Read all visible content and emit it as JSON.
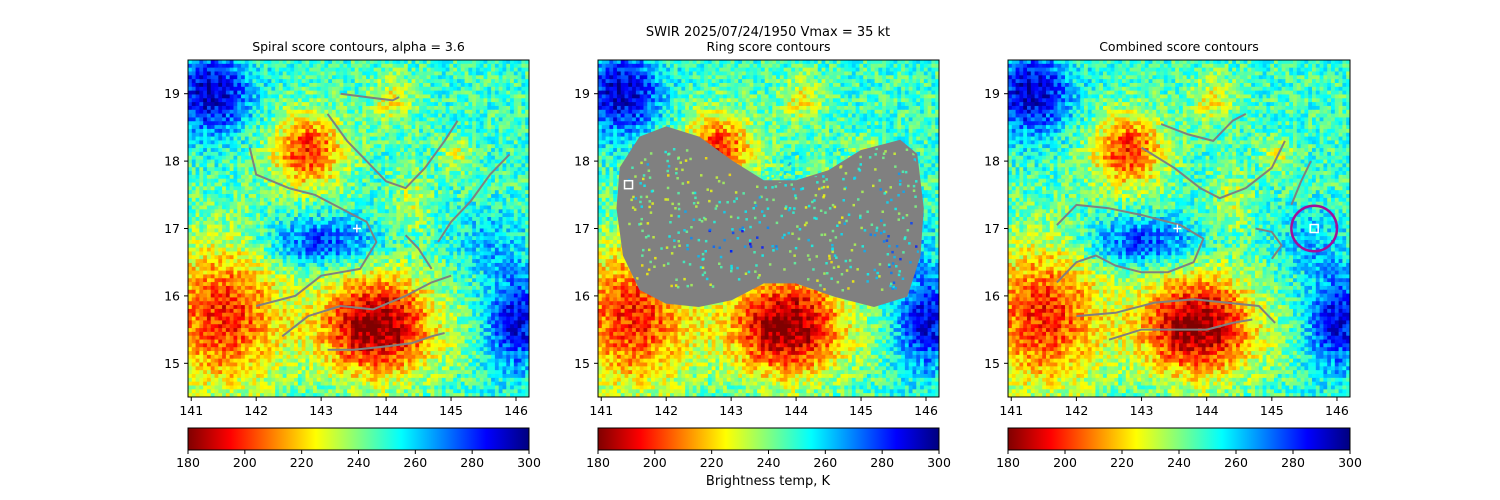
{
  "suptitle": "SWIR  2025/07/24/1950    Vmax = 35 kt",
  "colorbar_label": "Brightness temp, K",
  "colormap_stops": [
    "#800000",
    "#ff0000",
    "#ff8000",
    "#ffff00",
    "#80ff80",
    "#00ffff",
    "#0080ff",
    "#0000ff",
    "#00007f"
  ],
  "contour_color": "#808080",
  "marker_color": "#ffffff",
  "circle_color": "#a0109a",
  "chart_data": [
    {
      "type": "heatmap",
      "title": "Spiral score contours, alpha =  3.6",
      "xlim": [
        140.95,
        146.2
      ],
      "ylim": [
        14.5,
        19.5
      ],
      "xticks": [
        141,
        142,
        143,
        144,
        145,
        146
      ],
      "yticks": [
        15,
        16,
        17,
        18,
        19
      ],
      "colorbar": {
        "min": 180,
        "max": 300,
        "ticks": [
          180,
          200,
          220,
          240,
          260,
          280,
          300
        ]
      },
      "overlay": "spiral",
      "center_marker": {
        "lon": 143.55,
        "lat": 17.0,
        "symbol": "+"
      },
      "contours": [
        [
          [
            143.3,
            19.0
          ],
          [
            143.7,
            18.95
          ],
          [
            144.1,
            18.9
          ],
          [
            144.2,
            18.95
          ]
        ],
        [
          [
            143.1,
            18.7
          ],
          [
            143.4,
            18.3
          ],
          [
            143.7,
            18.0
          ],
          [
            144.0,
            17.7
          ],
          [
            144.3,
            17.6
          ],
          [
            144.6,
            17.9
          ],
          [
            144.9,
            18.3
          ],
          [
            145.1,
            18.6
          ]
        ],
        [
          [
            141.9,
            18.2
          ],
          [
            142.0,
            17.8
          ],
          [
            142.5,
            17.6
          ],
          [
            142.9,
            17.5
          ],
          [
            143.3,
            17.3
          ],
          [
            143.7,
            17.1
          ],
          [
            143.85,
            16.8
          ],
          [
            143.6,
            16.4
          ],
          [
            143.0,
            16.3
          ],
          [
            142.6,
            16.0
          ],
          [
            142.0,
            15.85
          ]
        ],
        [
          [
            142.4,
            15.4
          ],
          [
            142.8,
            15.7
          ],
          [
            143.3,
            15.85
          ],
          [
            143.8,
            15.8
          ],
          [
            144.3,
            16.0
          ],
          [
            144.7,
            16.2
          ],
          [
            145.0,
            16.3
          ]
        ],
        [
          [
            143.1,
            15.2
          ],
          [
            143.5,
            15.2
          ],
          [
            144.0,
            15.25
          ],
          [
            144.4,
            15.3
          ],
          [
            144.7,
            15.4
          ],
          [
            144.9,
            15.45
          ]
        ],
        [
          [
            144.8,
            16.8
          ],
          [
            145.0,
            17.1
          ],
          [
            145.3,
            17.4
          ],
          [
            145.6,
            17.8
          ],
          [
            145.9,
            18.1
          ]
        ],
        [
          [
            144.7,
            16.4
          ],
          [
            144.5,
            16.7
          ],
          [
            144.3,
            16.9
          ]
        ]
      ]
    },
    {
      "type": "heatmap",
      "title": "Ring score contours",
      "xlim": [
        140.95,
        146.2
      ],
      "ylim": [
        14.5,
        19.5
      ],
      "xticks": [
        141,
        142,
        143,
        144,
        145,
        146
      ],
      "yticks": [
        15,
        16,
        17,
        18,
        19
      ],
      "colorbar": {
        "min": 180,
        "max": 300,
        "ticks": [
          180,
          200,
          220,
          240,
          260,
          280,
          300
        ]
      },
      "overlay": "ring",
      "square_marker": {
        "lon": 141.42,
        "lat": 17.65
      },
      "ring_region": [
        [
          141.3,
          17.9
        ],
        [
          141.6,
          18.35
        ],
        [
          142.0,
          18.5
        ],
        [
          142.5,
          18.35
        ],
        [
          143.0,
          18.0
        ],
        [
          143.5,
          17.7
        ],
        [
          144.0,
          17.7
        ],
        [
          144.5,
          17.85
        ],
        [
          145.0,
          18.15
        ],
        [
          145.6,
          18.3
        ],
        [
          145.85,
          18.1
        ],
        [
          145.95,
          17.3
        ],
        [
          145.9,
          16.6
        ],
        [
          145.7,
          16.0
        ],
        [
          145.2,
          15.85
        ],
        [
          144.6,
          16.0
        ],
        [
          144.0,
          16.2
        ],
        [
          143.5,
          16.2
        ],
        [
          143.0,
          15.95
        ],
        [
          142.5,
          15.85
        ],
        [
          142.0,
          15.9
        ],
        [
          141.6,
          16.1
        ],
        [
          141.35,
          16.6
        ],
        [
          141.25,
          17.3
        ]
      ]
    },
    {
      "type": "heatmap",
      "title": "Combined score contours",
      "xlim": [
        140.95,
        146.2
      ],
      "ylim": [
        14.5,
        19.5
      ],
      "xticks": [
        141,
        142,
        143,
        144,
        145,
        146
      ],
      "yticks": [
        15,
        16,
        17,
        18,
        19
      ],
      "colorbar": {
        "min": 180,
        "max": 300,
        "ticks": [
          180,
          200,
          220,
          240,
          260,
          280,
          300
        ]
      },
      "overlay": "combined",
      "center_marker": {
        "lon": 143.55,
        "lat": 17.0,
        "symbol": "+"
      },
      "square_marker": {
        "lon": 145.65,
        "lat": 17.0
      },
      "circle": {
        "lon": 145.65,
        "lat": 17.0,
        "radius_deg": 0.35
      },
      "contours": [
        [
          [
            143.3,
            18.55
          ],
          [
            143.7,
            18.4
          ],
          [
            144.1,
            18.3
          ],
          [
            144.4,
            18.6
          ],
          [
            144.6,
            18.7
          ]
        ],
        [
          [
            143.0,
            18.2
          ],
          [
            143.5,
            17.9
          ],
          [
            143.9,
            17.6
          ],
          [
            144.2,
            17.45
          ],
          [
            144.6,
            17.6
          ],
          [
            145.0,
            17.9
          ],
          [
            145.2,
            18.3
          ]
        ],
        [
          [
            141.7,
            17.05
          ],
          [
            142.0,
            17.35
          ],
          [
            142.5,
            17.3
          ],
          [
            143.0,
            17.2
          ],
          [
            143.6,
            17.05
          ],
          [
            143.95,
            16.85
          ],
          [
            143.8,
            16.5
          ],
          [
            143.4,
            16.35
          ],
          [
            143.0,
            16.35
          ],
          [
            142.6,
            16.45
          ],
          [
            142.3,
            16.6
          ],
          [
            142.0,
            16.5
          ],
          [
            141.7,
            16.2
          ]
        ],
        [
          [
            142.0,
            15.7
          ],
          [
            142.6,
            15.75
          ],
          [
            143.2,
            15.9
          ],
          [
            143.8,
            15.95
          ],
          [
            144.3,
            15.9
          ],
          [
            144.8,
            15.85
          ],
          [
            145.05,
            15.6
          ]
        ],
        [
          [
            142.5,
            15.35
          ],
          [
            143.0,
            15.5
          ],
          [
            143.5,
            15.5
          ],
          [
            144.0,
            15.5
          ],
          [
            144.4,
            15.6
          ],
          [
            144.7,
            15.65
          ]
        ],
        [
          [
            144.75,
            17.0
          ],
          [
            145.0,
            16.95
          ],
          [
            145.15,
            16.75
          ],
          [
            145.0,
            16.55
          ]
        ],
        [
          [
            145.3,
            17.35
          ],
          [
            145.45,
            17.7
          ],
          [
            145.6,
            18.0
          ]
        ]
      ]
    }
  ]
}
